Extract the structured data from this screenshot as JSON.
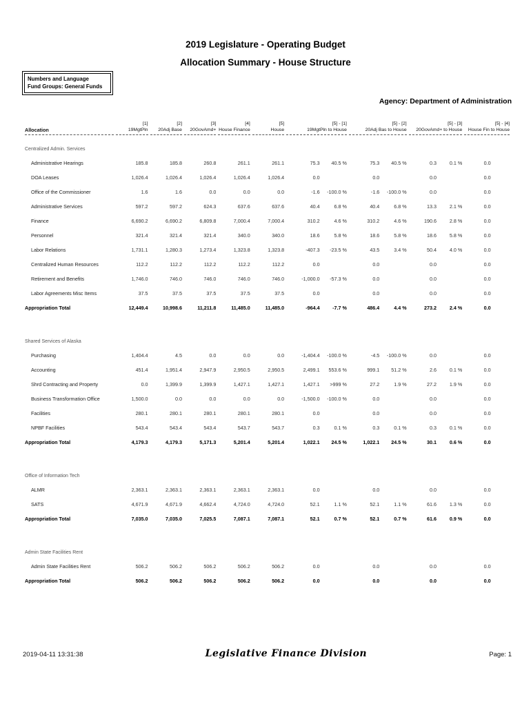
{
  "header": {
    "title": "2019 Legislature - Operating Budget",
    "subtitle": "Allocation Summary - House Structure",
    "box_line1": "Numbers and Language",
    "box_line2": "Fund Groups: General Funds",
    "agency_label": "Agency:",
    "agency_value": "Department of Administration"
  },
  "table": {
    "columns": {
      "allocation": "Allocation",
      "groups": [
        {
          "top": "[1]",
          "bottom": "19MgtPln"
        },
        {
          "top": "[2]",
          "bottom": "20Adj Base"
        },
        {
          "top": "[3]",
          "bottom": "20GovAmd+"
        },
        {
          "top": "[4]",
          "bottom": "House Finance"
        },
        {
          "top": "[5]",
          "bottom": "House"
        },
        {
          "top": "[5] - [1]",
          "bottom": "19MgtPln to  House"
        },
        {
          "top": "[5] - [2]",
          "bottom": "20Adj Bas to  House"
        },
        {
          "top": "[5] - [3]",
          "bottom": "20GovAmd+ to  House"
        },
        {
          "top": "[5] - [4]",
          "bottom": "House Fin to  House"
        }
      ]
    },
    "sections": [
      {
        "name": "Centralized Admin. Services",
        "rows": [
          {
            "label": "Administrative Hearings",
            "values": [
              "185.8",
              "185.8",
              "260.8",
              "261.1",
              "261.1",
              "75.3",
              "40.5 %",
              "75.3",
              "40.5 %",
              "0.3",
              "0.1 %",
              "0.0"
            ]
          },
          {
            "label": "DOA Leases",
            "values": [
              "1,026.4",
              "1,026.4",
              "1,026.4",
              "1,026.4",
              "1,026.4",
              "0.0",
              "",
              "0.0",
              "",
              "0.0",
              "",
              "0.0"
            ]
          },
          {
            "label": "Office of the Commissioner",
            "values": [
              "1.6",
              "1.6",
              "0.0",
              "0.0",
              "0.0",
              "-1.6",
              "-100.0 %",
              "-1.6",
              "-100.0 %",
              "0.0",
              "",
              "0.0"
            ]
          },
          {
            "label": "Administrative Services",
            "values": [
              "597.2",
              "597.2",
              "624.3",
              "637.6",
              "637.6",
              "40.4",
              "6.8 %",
              "40.4",
              "6.8 %",
              "13.3",
              "2.1 %",
              "0.0"
            ]
          },
          {
            "label": "Finance",
            "values": [
              "6,690.2",
              "6,690.2",
              "6,809.8",
              "7,000.4",
              "7,000.4",
              "310.2",
              "4.6 %",
              "310.2",
              "4.6 %",
              "190.6",
              "2.8 %",
              "0.0"
            ]
          },
          {
            "label": "Personnel",
            "values": [
              "321.4",
              "321.4",
              "321.4",
              "340.0",
              "340.0",
              "18.6",
              "5.8 %",
              "18.6",
              "5.8 %",
              "18.6",
              "5.8 %",
              "0.0"
            ]
          },
          {
            "label": "Labor Relations",
            "values": [
              "1,731.1",
              "1,280.3",
              "1,273.4",
              "1,323.8",
              "1,323.8",
              "-407.3",
              "-23.5 %",
              "43.5",
              "3.4 %",
              "50.4",
              "4.0 %",
              "0.0"
            ]
          },
          {
            "label": "Centralized Human Resources",
            "values": [
              "112.2",
              "112.2",
              "112.2",
              "112.2",
              "112.2",
              "0.0",
              "",
              "0.0",
              "",
              "0.0",
              "",
              "0.0"
            ]
          },
          {
            "label": "Retirement and Benefits",
            "values": [
              "1,746.0",
              "746.0",
              "746.0",
              "746.0",
              "746.0",
              "-1,000.0",
              "-57.3 %",
              "0.0",
              "",
              "0.0",
              "",
              "0.0"
            ]
          },
          {
            "label": "Labor Agreements Misc Items",
            "values": [
              "37.5",
              "37.5",
              "37.5",
              "37.5",
              "37.5",
              "0.0",
              "",
              "0.0",
              "",
              "0.0",
              "",
              "0.0"
            ]
          }
        ],
        "total": {
          "label": "Appropriation Total",
          "values": [
            "12,449.4",
            "10,998.6",
            "11,211.8",
            "11,485.0",
            "11,485.0",
            "-964.4",
            "-7.7 %",
            "486.4",
            "4.4 %",
            "273.2",
            "2.4 %",
            "0.0"
          ]
        }
      },
      {
        "name": "Shared Services of Alaska",
        "rows": [
          {
            "label": "Purchasing",
            "values": [
              "1,404.4",
              "4.5",
              "0.0",
              "0.0",
              "0.0",
              "-1,404.4",
              "-100.0 %",
              "-4.5",
              "-100.0 %",
              "0.0",
              "",
              "0.0"
            ]
          },
          {
            "label": "Accounting",
            "values": [
              "451.4",
              "1,951.4",
              "2,947.9",
              "2,950.5",
              "2,950.5",
              "2,499.1",
              "553.6 %",
              "999.1",
              "51.2 %",
              "2.6",
              "0.1 %",
              "0.0"
            ]
          },
          {
            "label": "Shrd Contracting and Property",
            "values": [
              "0.0",
              "1,399.9",
              "1,399.9",
              "1,427.1",
              "1,427.1",
              "1,427.1",
              ">999 %",
              "27.2",
              "1.9 %",
              "27.2",
              "1.9 %",
              "0.0"
            ]
          },
          {
            "label": "Business Transformation Office",
            "values": [
              "1,500.0",
              "0.0",
              "0.0",
              "0.0",
              "0.0",
              "-1,500.0",
              "-100.0 %",
              "0.0",
              "",
              "0.0",
              "",
              "0.0"
            ]
          },
          {
            "label": "Facilities",
            "values": [
              "280.1",
              "280.1",
              "280.1",
              "280.1",
              "280.1",
              "0.0",
              "",
              "0.0",
              "",
              "0.0",
              "",
              "0.0"
            ]
          },
          {
            "label": "NPBF Facilities",
            "values": [
              "543.4",
              "543.4",
              "543.4",
              "543.7",
              "543.7",
              "0.3",
              "0.1 %",
              "0.3",
              "0.1 %",
              "0.3",
              "0.1 %",
              "0.0"
            ]
          }
        ],
        "total": {
          "label": "Appropriation Total",
          "values": [
            "4,179.3",
            "4,179.3",
            "5,171.3",
            "5,201.4",
            "5,201.4",
            "1,022.1",
            "24.5 %",
            "1,022.1",
            "24.5 %",
            "30.1",
            "0.6 %",
            "0.0"
          ]
        }
      },
      {
        "name": "Office of Information Tech",
        "rows": [
          {
            "label": "ALMR",
            "values": [
              "2,363.1",
              "2,363.1",
              "2,363.1",
              "2,363.1",
              "2,363.1",
              "0.0",
              "",
              "0.0",
              "",
              "0.0",
              "",
              "0.0"
            ]
          },
          {
            "label": "SATS",
            "values": [
              "4,671.9",
              "4,671.9",
              "4,662.4",
              "4,724.0",
              "4,724.0",
              "52.1",
              "1.1 %",
              "52.1",
              "1.1 %",
              "61.6",
              "1.3 %",
              "0.0"
            ]
          }
        ],
        "total": {
          "label": "Appropriation Total",
          "values": [
            "7,035.0",
            "7,035.0",
            "7,025.5",
            "7,087.1",
            "7,087.1",
            "52.1",
            "0.7 %",
            "52.1",
            "0.7 %",
            "61.6",
            "0.9 %",
            "0.0"
          ]
        }
      },
      {
        "name": "Admin State Facilities Rent",
        "rows": [
          {
            "label": "Admin State Facilities Rent",
            "values": [
              "506.2",
              "506.2",
              "506.2",
              "506.2",
              "506.2",
              "0.0",
              "",
              "0.0",
              "",
              "0.0",
              "",
              "0.0"
            ]
          }
        ],
        "total": {
          "label": "Appropriation Total",
          "values": [
            "506.2",
            "506.2",
            "506.2",
            "506.2",
            "506.2",
            "0.0",
            "",
            "0.0",
            "",
            "0.0",
            "",
            "0.0"
          ]
        }
      }
    ]
  },
  "footer": {
    "timestamp": "2019-04-11 13:31:38",
    "center": "Legislative Finance Division",
    "page": "Page: 1"
  }
}
